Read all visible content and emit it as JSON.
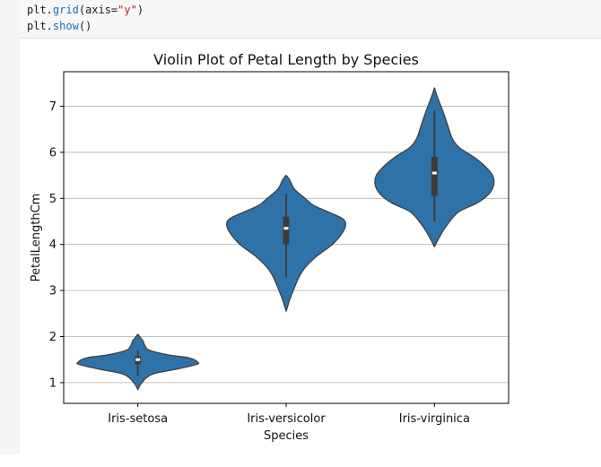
{
  "code": {
    "line1": {
      "obj": "plt.",
      "fn": "grid",
      "open": "(axis=",
      "str": "\"y\"",
      "close": ")"
    },
    "line2": {
      "obj": "plt.",
      "fn": "show",
      "rest": "()"
    }
  },
  "chart_data": {
    "type": "violin",
    "title": "Violin Plot of Petal Length by Species",
    "xlabel": "Species",
    "ylabel": "PetalLengthCm",
    "ylim": [
      0.55,
      7.75
    ],
    "yticks": [
      1,
      2,
      3,
      4,
      5,
      6,
      7
    ],
    "grid": "y",
    "fill_color": "#2f72a8",
    "edge_color": "#404040",
    "categories": [
      "Iris-setosa",
      "Iris-versicolor",
      "Iris-virginica"
    ],
    "violins": [
      {
        "category": "Iris-setosa",
        "min": 1.0,
        "q1": 1.4,
        "median": 1.5,
        "q3": 1.575,
        "max": 1.9,
        "whisker_low": 1.15,
        "whisker_high": 1.7,
        "extent": [
          0.85,
          2.05
        ],
        "density": [
          [
            0.85,
            0.0
          ],
          [
            0.95,
            0.04
          ],
          [
            1.0,
            0.07
          ],
          [
            1.1,
            0.14
          ],
          [
            1.2,
            0.28
          ],
          [
            1.3,
            0.68
          ],
          [
            1.4,
            1.0
          ],
          [
            1.45,
            1.0
          ],
          [
            1.5,
            0.95
          ],
          [
            1.55,
            0.82
          ],
          [
            1.6,
            0.52
          ],
          [
            1.7,
            0.2
          ],
          [
            1.8,
            0.12
          ],
          [
            1.9,
            0.09
          ],
          [
            1.95,
            0.06
          ],
          [
            2.05,
            0.0
          ]
        ]
      },
      {
        "category": "Iris-versicolor",
        "min": 3.0,
        "q1": 4.0,
        "median": 4.35,
        "q3": 4.6,
        "max": 5.1,
        "whisker_low": 3.3,
        "whisker_high": 5.1,
        "extent": [
          2.55,
          5.5
        ],
        "density": [
          [
            2.55,
            0.0
          ],
          [
            2.8,
            0.06
          ],
          [
            3.0,
            0.12
          ],
          [
            3.3,
            0.22
          ],
          [
            3.5,
            0.32
          ],
          [
            3.75,
            0.52
          ],
          [
            4.0,
            0.78
          ],
          [
            4.2,
            0.92
          ],
          [
            4.4,
            1.0
          ],
          [
            4.55,
            0.96
          ],
          [
            4.7,
            0.72
          ],
          [
            4.85,
            0.46
          ],
          [
            5.0,
            0.32
          ],
          [
            5.2,
            0.14
          ],
          [
            5.4,
            0.06
          ],
          [
            5.5,
            0.0
          ]
        ]
      },
      {
        "category": "Iris-virginica",
        "min": 4.5,
        "q1": 5.05,
        "median": 5.55,
        "q3": 5.9,
        "max": 6.9,
        "whisker_low": 4.5,
        "whisker_high": 6.9,
        "extent": [
          3.95,
          7.4
        ],
        "density": [
          [
            3.95,
            0.0
          ],
          [
            4.15,
            0.08
          ],
          [
            4.4,
            0.2
          ],
          [
            4.7,
            0.4
          ],
          [
            4.9,
            0.72
          ],
          [
            5.1,
            0.92
          ],
          [
            5.3,
            1.0
          ],
          [
            5.5,
            0.98
          ],
          [
            5.7,
            0.85
          ],
          [
            5.9,
            0.66
          ],
          [
            6.1,
            0.42
          ],
          [
            6.3,
            0.3
          ],
          [
            6.6,
            0.22
          ],
          [
            6.9,
            0.14
          ],
          [
            7.2,
            0.05
          ],
          [
            7.4,
            0.0
          ]
        ]
      }
    ]
  }
}
